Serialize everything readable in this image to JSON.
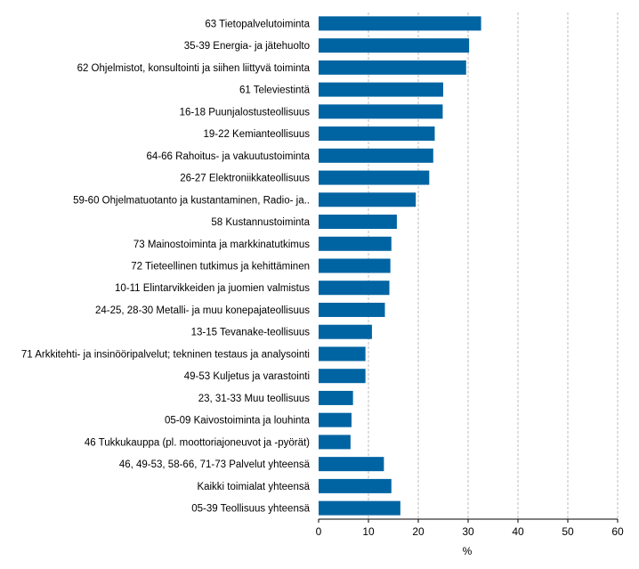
{
  "colors": {
    "bar": "#0064a2",
    "grid": "#bdbdbd",
    "axis": "#000000"
  },
  "chart_data": {
    "type": "bar",
    "orientation": "horizontal",
    "categories": [
      "63 Tietopalvelutoiminta",
      "35-39 Energia- ja jätehuolto",
      "62 Ohjelmistot, konsultointi ja siihen liittyvä toiminta",
      "61 Televiestintä",
      "16-18 Puunjalostusteollisuus",
      "19-22 Kemianteollisuus",
      "64-66 Rahoitus- ja vakuutustoiminta",
      "26-27 Elektroniikkateollisuus",
      "59-60 Ohjelmatuotanto ja kustantaminen, Radio- ja..",
      "58 Kustannustoiminta",
      "73 Mainostoiminta ja markkinatutkimus",
      "72 Tieteellinen tutkimus ja kehittäminen",
      "10-11 Elintarvikkeiden ja juomien valmistus",
      "24-25, 28-30 Metalli- ja muu konepajateollisuus",
      "13-15 Tevanake-teollisuus",
      "71 Arkkitehti- ja insinööripalvelut; tekninen testaus ja analysointi",
      "49-53 Kuljetus ja varastointi",
      "23, 31-33 Muu teollisuus",
      "05-09 Kaivostoiminta ja louhinta",
      "46 Tukkukauppa (pl. moottoriajoneuvot ja -pyörät)",
      "46, 49-53, 58-66, 71-73 Palvelut yhteensä",
      "Kaikki toimialat yhteensä",
      "05-39 Teollisuus yhteensä"
    ],
    "values": [
      32.6,
      30.2,
      29.6,
      25.0,
      24.9,
      23.3,
      23.0,
      22.2,
      19.5,
      15.7,
      14.6,
      14.4,
      14.2,
      13.3,
      10.7,
      9.4,
      9.4,
      6.9,
      6.6,
      6.4,
      13.1,
      14.6,
      16.4
    ],
    "xlabel": "%",
    "xlim": [
      0,
      60
    ],
    "xticks": [
      "0",
      "10",
      "20",
      "30",
      "40",
      "50",
      "60"
    ],
    "grid": "vertical dashed"
  }
}
